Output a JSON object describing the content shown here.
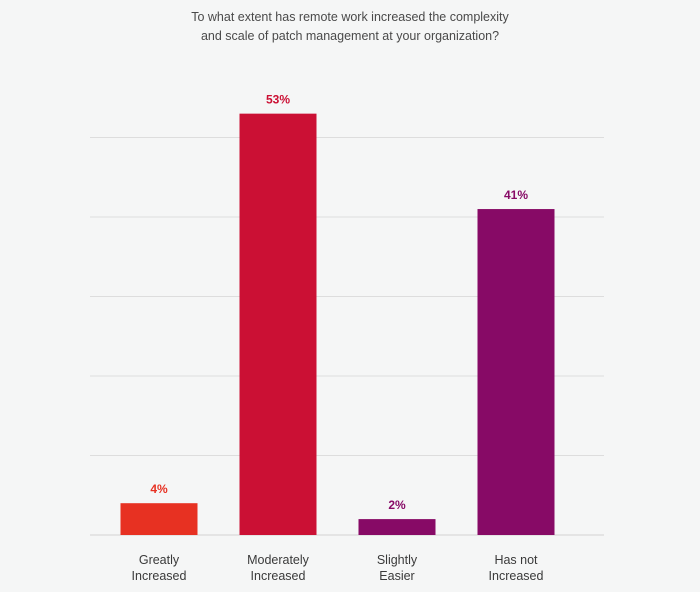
{
  "chart_data": {
    "type": "bar",
    "title_lines": [
      "To what extent has remote work increased the complexity",
      "and scale of patch management at your organization?"
    ],
    "categories": [
      [
        "Greatly",
        "Increased"
      ],
      [
        "Moderately",
        "Increased"
      ],
      [
        "Slightly",
        "Easier"
      ],
      [
        "Has not",
        "Increased"
      ]
    ],
    "values": [
      4,
      53,
      2,
      41
    ],
    "data_labels": [
      "4%",
      "53%",
      "2%",
      "41%"
    ],
    "colors": [
      "#e73122",
      "#cb1034",
      "#870a66",
      "#870a66"
    ],
    "ylim": [
      0,
      50
    ],
    "gridlines": [
      0,
      10,
      20,
      30,
      40,
      50
    ],
    "grid": true,
    "axis_color": "#dddddd"
  }
}
